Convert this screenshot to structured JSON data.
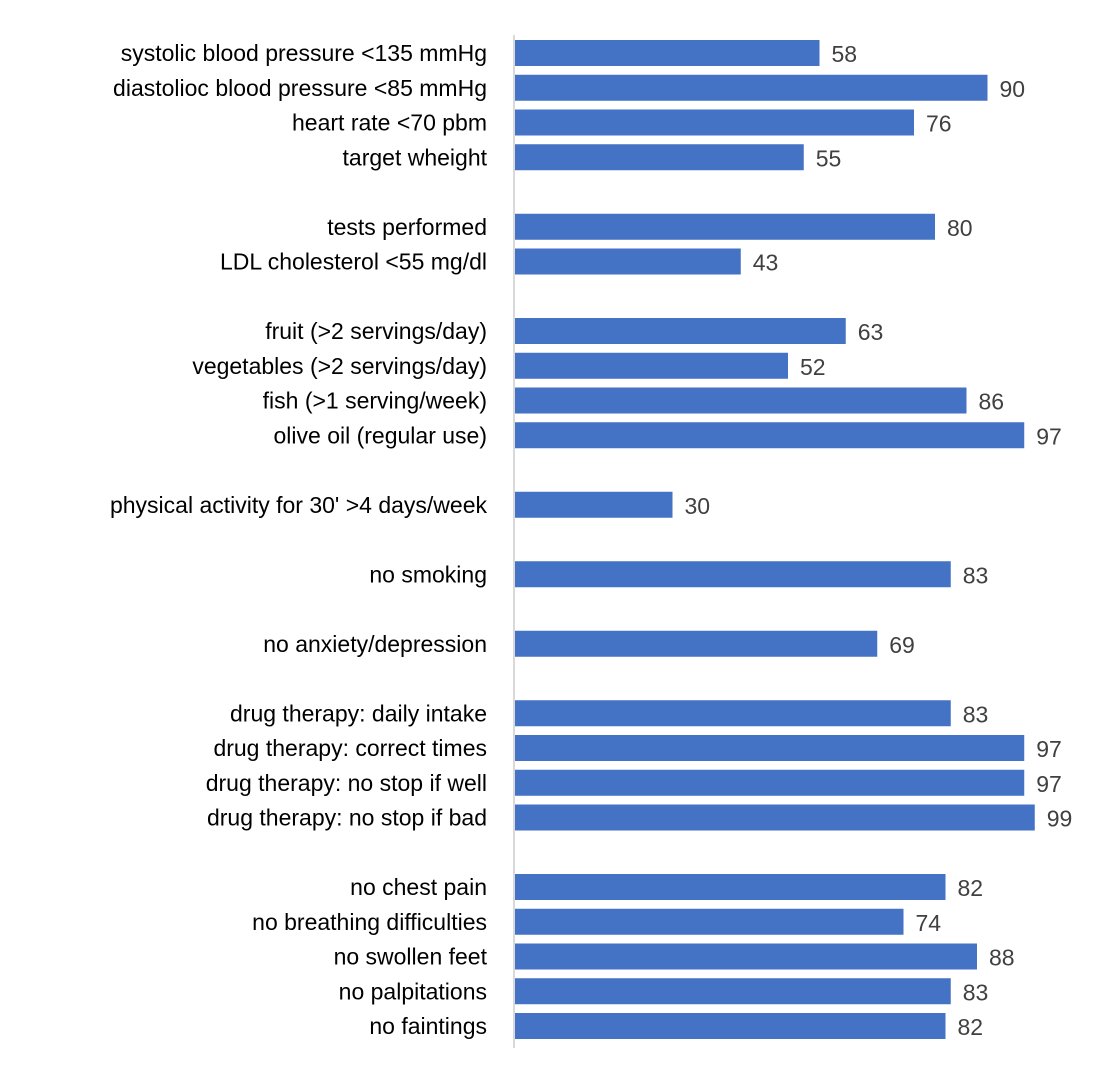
{
  "chart_data": {
    "type": "bar",
    "orientation": "horizontal",
    "title": "",
    "xlabel": "",
    "ylabel": "",
    "xlim": [
      0,
      100
    ],
    "grid": false,
    "legend": "none",
    "bar_color": "#4472C4",
    "axis_color": "#D9D9D9",
    "label_color": "#000000",
    "value_label_color": "#404040",
    "categories": [
      "systolic blood pressure <135 mmHg",
      "diastolioc blood pressure <85 mmHg",
      "heart rate <70 pbm",
      "target wheight",
      "",
      "tests performed",
      "LDL cholesterol <55 mg/dl",
      "",
      "fruit (>2 servings/day)",
      "vegetables (>2 servings/day)",
      "fish (>1 serving/week)",
      "olive oil (regular use)",
      "",
      "physical activity for 30' >4 days/week",
      "",
      "no smoking",
      "",
      "no anxiety/depression",
      "",
      "drug therapy: daily intake",
      "drug therapy: correct times",
      "drug therapy: no stop if well",
      "drug therapy: no stop if bad",
      "",
      "no chest pain",
      "no breathing difficulties",
      "no swollen feet",
      "no palpitations",
      "no faintings"
    ],
    "values": [
      58,
      90,
      76,
      55,
      null,
      80,
      43,
      null,
      63,
      52,
      86,
      97,
      null,
      30,
      null,
      83,
      null,
      69,
      null,
      83,
      97,
      97,
      99,
      null,
      82,
      74,
      88,
      83,
      82
    ],
    "data_labels": [
      "58",
      "90",
      "76",
      "55",
      "",
      "80",
      "43",
      "",
      "63",
      "52",
      "86",
      "97",
      "",
      "30",
      "",
      "83",
      "",
      "69",
      "",
      "83",
      "97",
      "97",
      "99",
      "",
      "82",
      "74",
      "88",
      "83",
      "82"
    ]
  }
}
